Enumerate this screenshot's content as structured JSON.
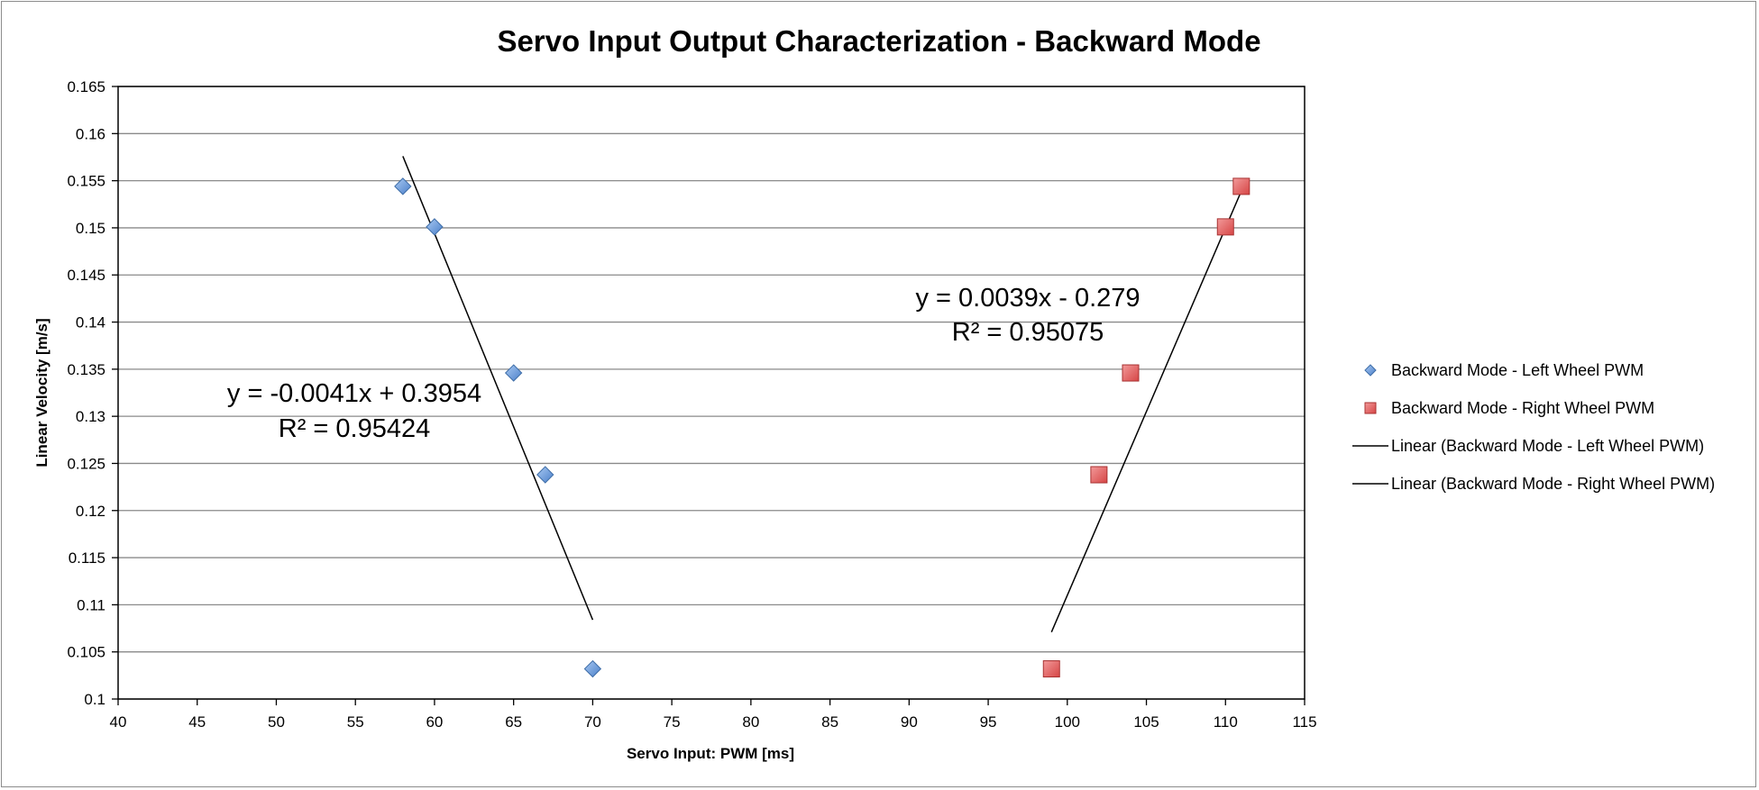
{
  "chart_data": {
    "type": "scatter",
    "title": "Servo Input Output Characterization - Backward Mode",
    "xlabel": "Servo Input: PWM [ms]",
    "ylabel": "Linear Velocity [m/s]",
    "xlim": [
      40,
      115
    ],
    "ylim": [
      0.1,
      0.165
    ],
    "x_ticks": [
      40,
      45,
      50,
      55,
      60,
      65,
      70,
      75,
      80,
      85,
      90,
      95,
      100,
      105,
      110,
      115
    ],
    "y_ticks": [
      0.1,
      0.105,
      0.11,
      0.115,
      0.12,
      0.125,
      0.13,
      0.135,
      0.14,
      0.145,
      0.15,
      0.155,
      0.16,
      0.165
    ],
    "y_tick_labels": [
      "0.1",
      "0.105",
      "0.11",
      "0.115",
      "0.12",
      "0.125",
      "0.13",
      "0.135",
      "0.14",
      "0.145",
      "0.15",
      "0.155",
      "0.16",
      "0.165"
    ],
    "grid": "horizontal",
    "legend_position": "right",
    "series": [
      {
        "name": "Backward Mode - Left Wheel PWM",
        "marker": "diamond",
        "color": "#6a9ad8",
        "x": [
          58,
          60,
          65,
          67,
          70
        ],
        "y": [
          0.1544,
          0.1501,
          0.1346,
          0.1238,
          0.1032
        ]
      },
      {
        "name": "Backward Mode - Right Wheel PWM",
        "marker": "square",
        "color": "#e05a5a",
        "x": [
          99,
          102,
          104,
          110,
          111
        ],
        "y": [
          0.1032,
          0.1238,
          0.1346,
          0.1501,
          0.1544
        ]
      }
    ],
    "trendlines": [
      {
        "name": "Linear (Backward Mode - Left Wheel PWM)",
        "slope": -0.0041,
        "intercept": 0.3954,
        "x_range": [
          58,
          70
        ],
        "equation": "y = -0.0041x + 0.3954",
        "r2": "R² = 0.95424",
        "color": "#000000"
      },
      {
        "name": "Linear (Backward Mode - Right Wheel PWM)",
        "slope": 0.0039,
        "intercept": -0.279,
        "x_range": [
          99,
          111
        ],
        "equation": "y = 0.0039x - 0.279",
        "r2": "R² = 0.95075",
        "color": "#000000"
      }
    ]
  }
}
